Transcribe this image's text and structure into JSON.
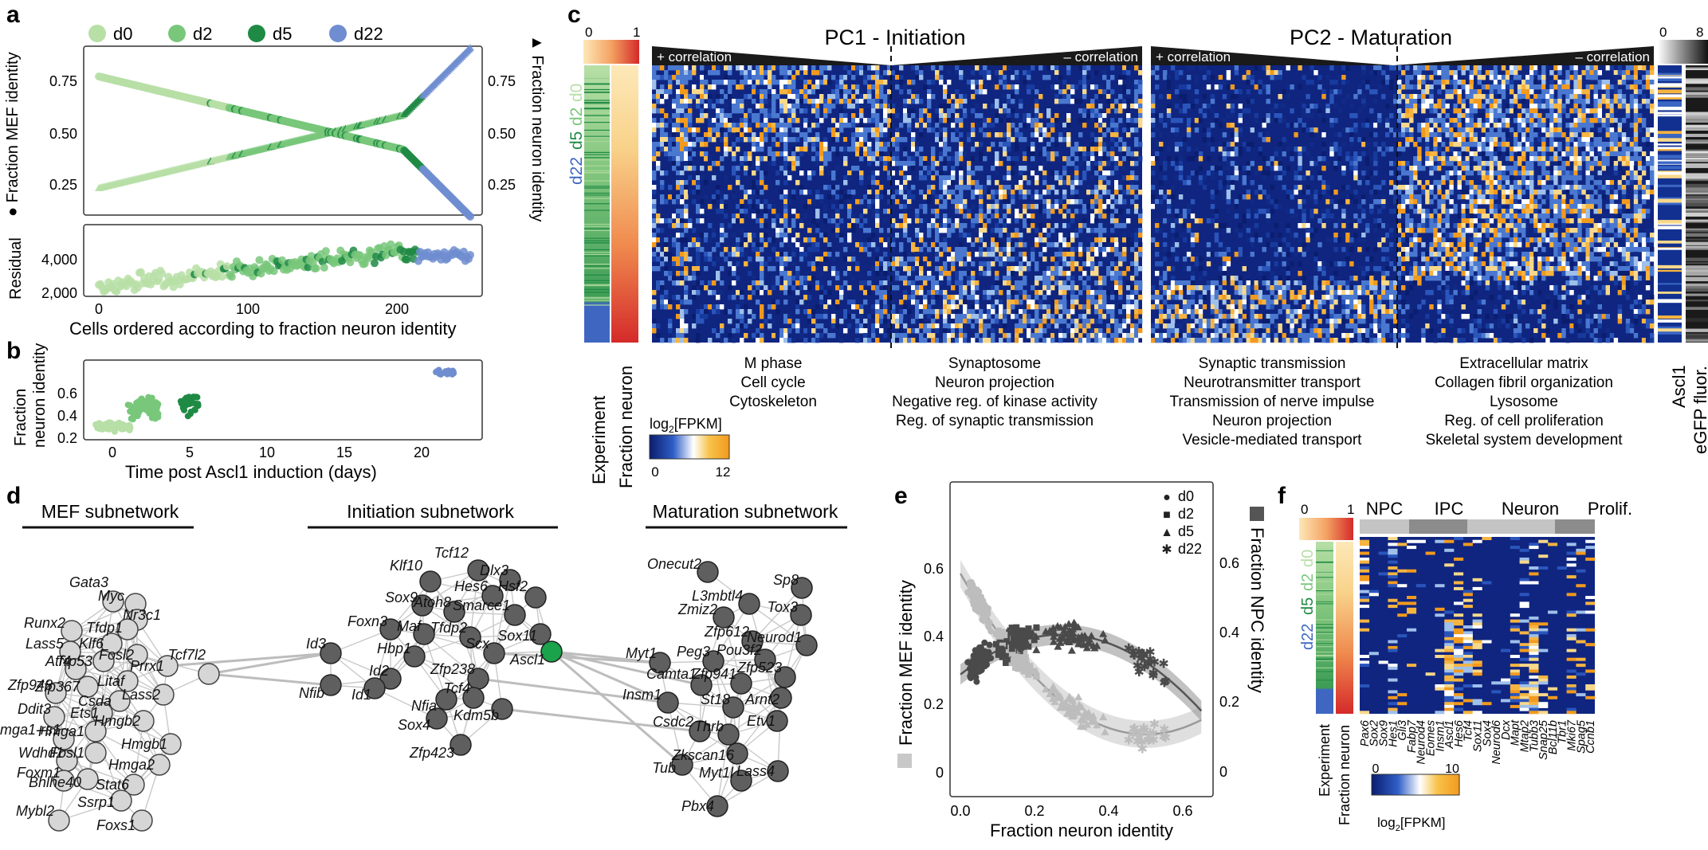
{
  "panels": {
    "a": "a",
    "b": "b",
    "c": "c",
    "d": "d",
    "e": "e",
    "f": "f"
  },
  "legend": [
    {
      "label": "d0",
      "color": "#b7dfa6"
    },
    {
      "label": "d2",
      "color": "#78c77a"
    },
    {
      "label": "d5",
      "color": "#1f8a44"
    },
    {
      "label": "d22",
      "color": "#6f8dd0"
    }
  ],
  "panel_a": {
    "ylabel_left": "● Fraction MEF identity",
    "ylabel_right": "▲ Fraction neuron identity",
    "yticks": [
      "0.75",
      "0.50",
      "0.25"
    ],
    "residual_label": "Residual",
    "residual_ticks": [
      "4,000",
      "2,000"
    ],
    "xticks": [
      "0",
      "100",
      "200"
    ],
    "xlabel": "Cells ordered according to fraction neuron identity"
  },
  "panel_b": {
    "ylabel": [
      "Fraction",
      "neuron identity"
    ],
    "yticks": [
      "0.6",
      "0.4",
      "0.2"
    ],
    "xticks": [
      "0",
      "5",
      "10",
      "15",
      "20"
    ],
    "xlabel": "Time post Ascl1 induction (days)"
  },
  "panel_c": {
    "scale_ticks_left": [
      "0",
      "1"
    ],
    "scale_ticks_right": [
      "0",
      "8"
    ],
    "side_labels": {
      "d22": "d22",
      "d5": "d5",
      "d2": "d2",
      "d0": "d0"
    },
    "pc1_title": "PC1 - Initiation",
    "pc2_title": "PC2 - Maturation",
    "pos_corr": "+ correlation",
    "neg_corr": "– correlation",
    "bottom_experiment": "Experiment",
    "bottom_fraction": "Fraction neuron",
    "bottom_ascl1": "Ascl1",
    "bottom_egfp": "eGFP fluor.",
    "colorbar_label": "log2[FPKM]",
    "colorbar_ticks": [
      "0",
      "12"
    ],
    "go_terms": [
      [
        "M phase",
        "Cell cycle",
        "Cytoskeleton"
      ],
      [
        "Synaptosome",
        "Neuron projection",
        "Negative reg. of kinase activity",
        "Reg. of synaptic transmission"
      ],
      [
        "Synaptic transmission",
        "Neurotransmitter transport",
        "Transmission of nerve impulse",
        "Neuron projection",
        "Vesicle-mediated transport"
      ],
      [
        "Extracellular matrix",
        "Collagen fibril organization",
        "Lysosome",
        "Reg. of cell proliferation",
        "Skeletal system development"
      ]
    ]
  },
  "panel_d": {
    "titles": [
      "MEF subnetwork",
      "Initiation subnetwork",
      "Maturation subnetwork"
    ],
    "mef_genes": [
      "Gata3",
      "Runx2",
      "Myc",
      "Nr3c1",
      "Lass5",
      "Tfdp1",
      "Atf4",
      "Klf6",
      "Zfp948",
      "Trp53",
      "Fosl2",
      "Tcf7l2",
      "Prrx1",
      "Ddit3",
      "Zfp367",
      "Litaf",
      "Hmga1-rs1",
      "Csda",
      "Ets1",
      "Lass2",
      "Wdhd1",
      "Hmga1",
      "Hmgb2",
      "Hmgb1",
      "Fosl1",
      "Hmga2",
      "Foxm1",
      "Stat6",
      "Bhlhe40",
      "Ssrp1",
      "Mybl2",
      "Foxs1"
    ],
    "init_genes": [
      "Tcf12",
      "Dlx3",
      "Klf10",
      "Hes6",
      "Hsf2",
      "Sox9",
      "Atoh8",
      "Smarce1",
      "Foxn3",
      "Maf",
      "Tfdp2",
      "Id3",
      "Hbp1",
      "Scx",
      "Sox11",
      "Id2",
      "Zfp238",
      "Nfib",
      "Id1",
      "Nfia",
      "Tcf4",
      "Ascl1",
      "Kdm5b",
      "Sox4",
      "Zfp423"
    ],
    "mat_genes": [
      "Onecut2",
      "L3mbtl4",
      "Sp8",
      "Zmiz2",
      "Tox3",
      "Zfp612",
      "Myt1",
      "Peg3",
      "Pou3f2",
      "Neurod1",
      "Camta1",
      "Zfp941",
      "Zfp523",
      "Arnt2",
      "Insm1",
      "St18",
      "Etv1",
      "Csdc2",
      "Thrb",
      "Zkscan16",
      "Tub",
      "Myt1l",
      "Lass4",
      "Pbx4"
    ]
  },
  "panel_e": {
    "xlabel": "Fraction neuron identity",
    "ylabel_left": "Fraction MEF identity",
    "ylabel_right": "Fraction NPC identity",
    "xticks": [
      "0.0",
      "0.2",
      "0.4",
      "0.6"
    ],
    "yticks_left": [
      "0.6",
      "0.4",
      "0.2",
      "0"
    ],
    "yticks_right": [
      "0.6",
      "0.4",
      "0.2",
      "0"
    ],
    "legend": [
      {
        "label": "d0",
        "symbol": "●"
      },
      {
        "label": "d2",
        "symbol": "■"
      },
      {
        "label": "d5",
        "symbol": "▲"
      },
      {
        "label": "d22",
        "symbol": "✱"
      }
    ]
  },
  "panel_f": {
    "scale_ticks": [
      "0",
      "1"
    ],
    "groups": [
      "NPC",
      "IPC",
      "Neuron",
      "Prolif."
    ],
    "genes": [
      "Pax6",
      "Sox2",
      "Sox9",
      "Hes1",
      "Gli3",
      "Fabp7",
      "Neurod4",
      "Eomes",
      "Insm1",
      "Ascl1",
      "Hes6",
      "Tcf4",
      "Sox11",
      "Sox4",
      "Neurod6",
      "Dcx",
      "Mapt",
      "Mtap2",
      "Tubb3",
      "Snap25",
      "Bcl11b",
      "Tbr1",
      "Mki67",
      "Spag5",
      "Ccnb1"
    ],
    "bottom_experiment": "Experiment",
    "bottom_fraction": "Fraction neuron",
    "colorbar_label": "log2[FPKM]",
    "colorbar_ticks": [
      "0",
      "10"
    ],
    "side_labels": {
      "d22": "d22",
      "d5": "d5",
      "d2": "d2",
      "d0": "d0"
    }
  },
  "colors": {
    "d0": "#b7dfa6",
    "d2": "#78c77a",
    "d5": "#1f8a44",
    "d22": "#6f8dd0",
    "heat_low": "#0b1d6e",
    "heat_mid": "#ffffff",
    "heat_high": "#f6a623",
    "node_light": "#d6d6d6",
    "node_dark": "#5f5f5f",
    "ascl1": "#1aa34a"
  }
}
